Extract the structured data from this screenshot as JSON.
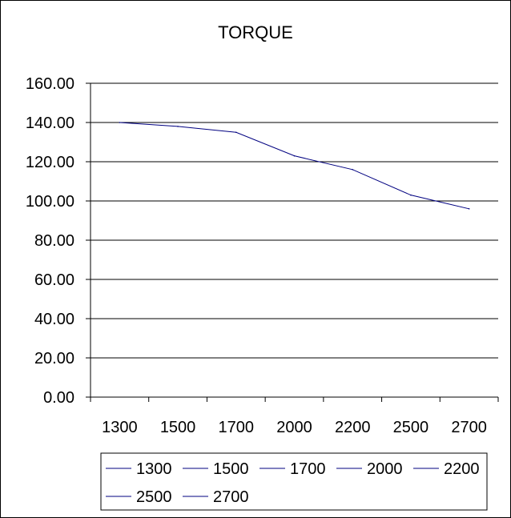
{
  "chart_data": {
    "type": "line",
    "title": "TORQUE",
    "xlabel": "",
    "ylabel": "",
    "categories": [
      "1300",
      "1500",
      "1700",
      "2000",
      "2200",
      "2500",
      "2700"
    ],
    "series": [
      {
        "values": [
          140,
          138,
          135,
          123,
          116,
          103,
          96
        ],
        "color": "#000080"
      }
    ],
    "ylim": [
      0,
      160
    ],
    "yticks": [
      "0.00",
      "20.00",
      "40.00",
      "60.00",
      "80.00",
      "100.00",
      "120.00",
      "140.00",
      "160.00"
    ],
    "grid": true,
    "legend_position": "bottom",
    "legend_entries": [
      "1300",
      "1500",
      "1700",
      "2000",
      "2200",
      "2500",
      "2700"
    ],
    "legend_color": "#000080"
  }
}
